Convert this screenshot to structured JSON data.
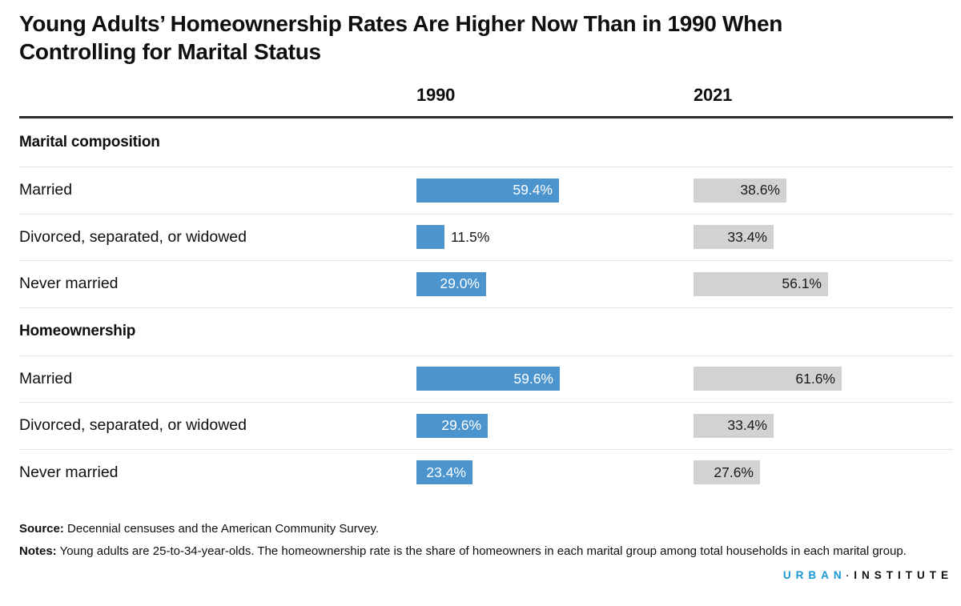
{
  "title": {
    "full": "Young Adults’ Homeownership Rates Are Higher Now Than in 1990 When Controlling for Marital Status",
    "lines": [
      "Young Adults’ Homeownership Rates Are Higher Now Than in 1990 When",
      "Controlling for Marital Status"
    ]
  },
  "chart_data": {
    "type": "bar",
    "title": "Young Adults’ Homeownership Rates Are Higher Now Than in 1990 When Controlling for Marital Status",
    "column_headers": [
      "1990",
      "2021"
    ],
    "unit": "%",
    "xlim": [
      0,
      100
    ],
    "grid": false,
    "legend": "none (columns labeled 1990 and 2021)",
    "series_colors": {
      "y1990": "#4b94ce",
      "y2021": "#d2d2d2"
    },
    "sections": [
      {
        "header": "Marital composition",
        "rows": [
          {
            "label": "Married",
            "y1990": 59.4,
            "y1990_display": "59.4%",
            "y2021": 38.6,
            "y2021_display": "38.6%"
          },
          {
            "label": "Divorced, separated, or widowed",
            "y1990": 11.5,
            "y1990_display": "11.5%",
            "y2021": 33.4,
            "y2021_display": "33.4%"
          },
          {
            "label": "Never married",
            "y1990": 29.0,
            "y1990_display": "29.0%",
            "y2021": 56.1,
            "y2021_display": "56.1%"
          }
        ]
      },
      {
        "header": "Homeownership",
        "rows": [
          {
            "label": "Married",
            "y1990": 59.6,
            "y1990_display": "59.6%",
            "y2021": 61.6,
            "y2021_display": "61.6%"
          },
          {
            "label": "Divorced, separated, or widowed",
            "y1990": 29.6,
            "y1990_display": "29.6%",
            "y2021": 33.4,
            "y2021_display": "33.4%"
          },
          {
            "label": "Never married",
            "y1990": 23.4,
            "y1990_display": "23.4%",
            "y2021": 27.6,
            "y2021_display": "27.6%"
          }
        ]
      }
    ]
  },
  "footer": {
    "source_label": "Source:",
    "source_text": " Decennial censuses and the American Community Survey.",
    "notes_label": "Notes:",
    "notes_text": " Young adults are 25-to-34-year-olds. The homeownership rate is the share of homeowners in each marital group among total households in each marital group.",
    "logo": {
      "part1": "URBAN",
      "separator": "·",
      "part2": "INSTITUTE"
    }
  }
}
